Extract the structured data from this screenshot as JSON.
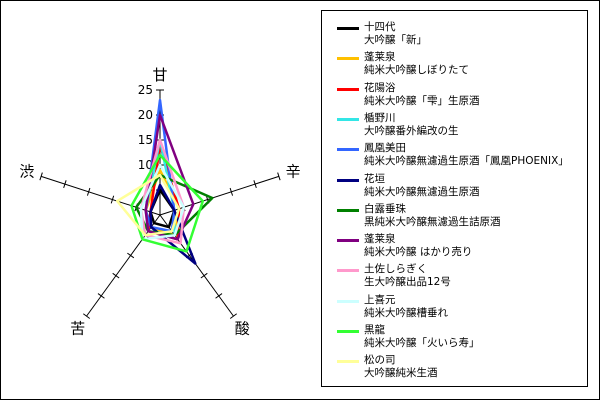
{
  "chart_data": {
    "type": "radar",
    "title": "",
    "axes": [
      "甘",
      "辛",
      "酸",
      "苦",
      "渋"
    ],
    "rmax": 25,
    "ticks": [
      0,
      5,
      10,
      15,
      20,
      25
    ],
    "tick_labels": [
      "5",
      "10",
      "15",
      "20",
      "25"
    ],
    "legend_position": "right",
    "series": [
      {
        "name": "十四代",
        "subname": "大吟醸「新」",
        "color": "#000000",
        "values": [
          5,
          3,
          3,
          2,
          2
        ]
      },
      {
        "name": "蓬莱泉",
        "subname": "純米大吟醸しぼりたて",
        "color": "#FFC000",
        "values": [
          9,
          4,
          5,
          3,
          3
        ]
      },
      {
        "name": "花陽浴",
        "subname": "純米大吟醸「雫」生原酒",
        "color": "#FF0000",
        "values": [
          14,
          4,
          6,
          4,
          2
        ]
      },
      {
        "name": "楯野川",
        "subname": "大吟醸番外編改の生",
        "color": "#33E6E6",
        "values": [
          15,
          3,
          5,
          4,
          3
        ]
      },
      {
        "name": "鳳凰美田",
        "subname": "純米大吟醸無濾過生原酒「鳳凰PHOENIX」",
        "color": "#3366FF",
        "values": [
          23,
          3,
          4,
          3,
          3
        ]
      },
      {
        "name": "花垣",
        "subname": "純米大吟醸無濾過生原酒",
        "color": "#000080",
        "values": [
          6,
          3,
          12,
          3,
          2
        ]
      },
      {
        "name": "白露垂珠",
        "subname": "黒純米大吟醸無濾過生詰原酒",
        "color": "#008000",
        "values": [
          8,
          11,
          5,
          4,
          5
        ]
      },
      {
        "name": "蓬莱泉",
        "subname": "純米大吟醸 はかり売り",
        "color": "#800080",
        "values": [
          20,
          7,
          6,
          4,
          3
        ]
      },
      {
        "name": "土佐しらぎく",
        "subname": "生大吟醸出品12号",
        "color": "#FF99CC",
        "values": [
          15,
          5,
          7,
          5,
          4
        ]
      },
      {
        "name": "上喜元",
        "subname": "純米大吟醸槽垂れ",
        "color": "#CCFFFF",
        "values": [
          10,
          5,
          5,
          6,
          4
        ]
      },
      {
        "name": "黒龍",
        "subname": "純米大吟醸「火いら寿」",
        "color": "#33FF33",
        "values": [
          12,
          9,
          9,
          6,
          6
        ]
      },
      {
        "name": "松の司",
        "subname": "大吟醸純米生酒",
        "color": "#FFFF99",
        "values": [
          8,
          4,
          4,
          5,
          9
        ]
      }
    ]
  }
}
